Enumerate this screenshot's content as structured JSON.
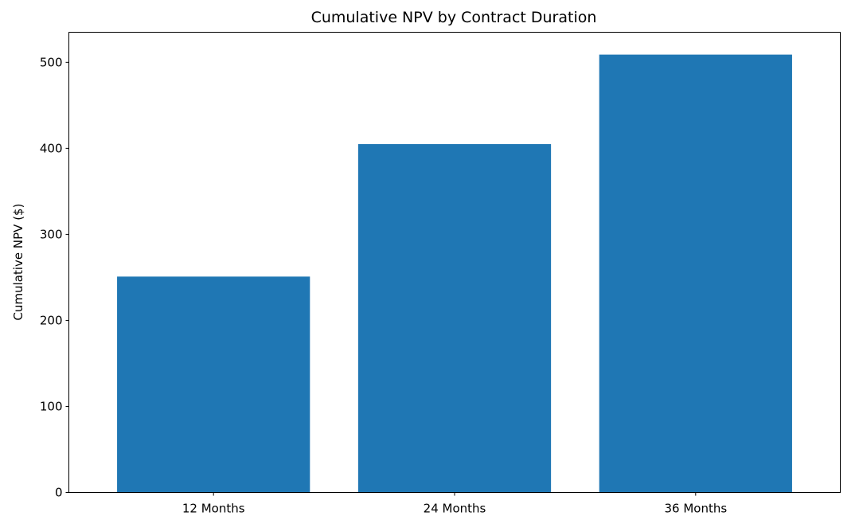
{
  "chart_data": {
    "type": "bar",
    "title": "Cumulative NPV by Contract Duration",
    "xlabel": "",
    "ylabel": "Cumulative NPV ($)",
    "categories": [
      "12 Months",
      "24 Months",
      "36 Months"
    ],
    "values": [
      251,
      405,
      509
    ],
    "ylim": [
      0,
      535
    ],
    "yticks": [
      0,
      100,
      200,
      300,
      400,
      500
    ],
    "grid": false,
    "legend": "none",
    "bar_color": "#1f77b4"
  }
}
